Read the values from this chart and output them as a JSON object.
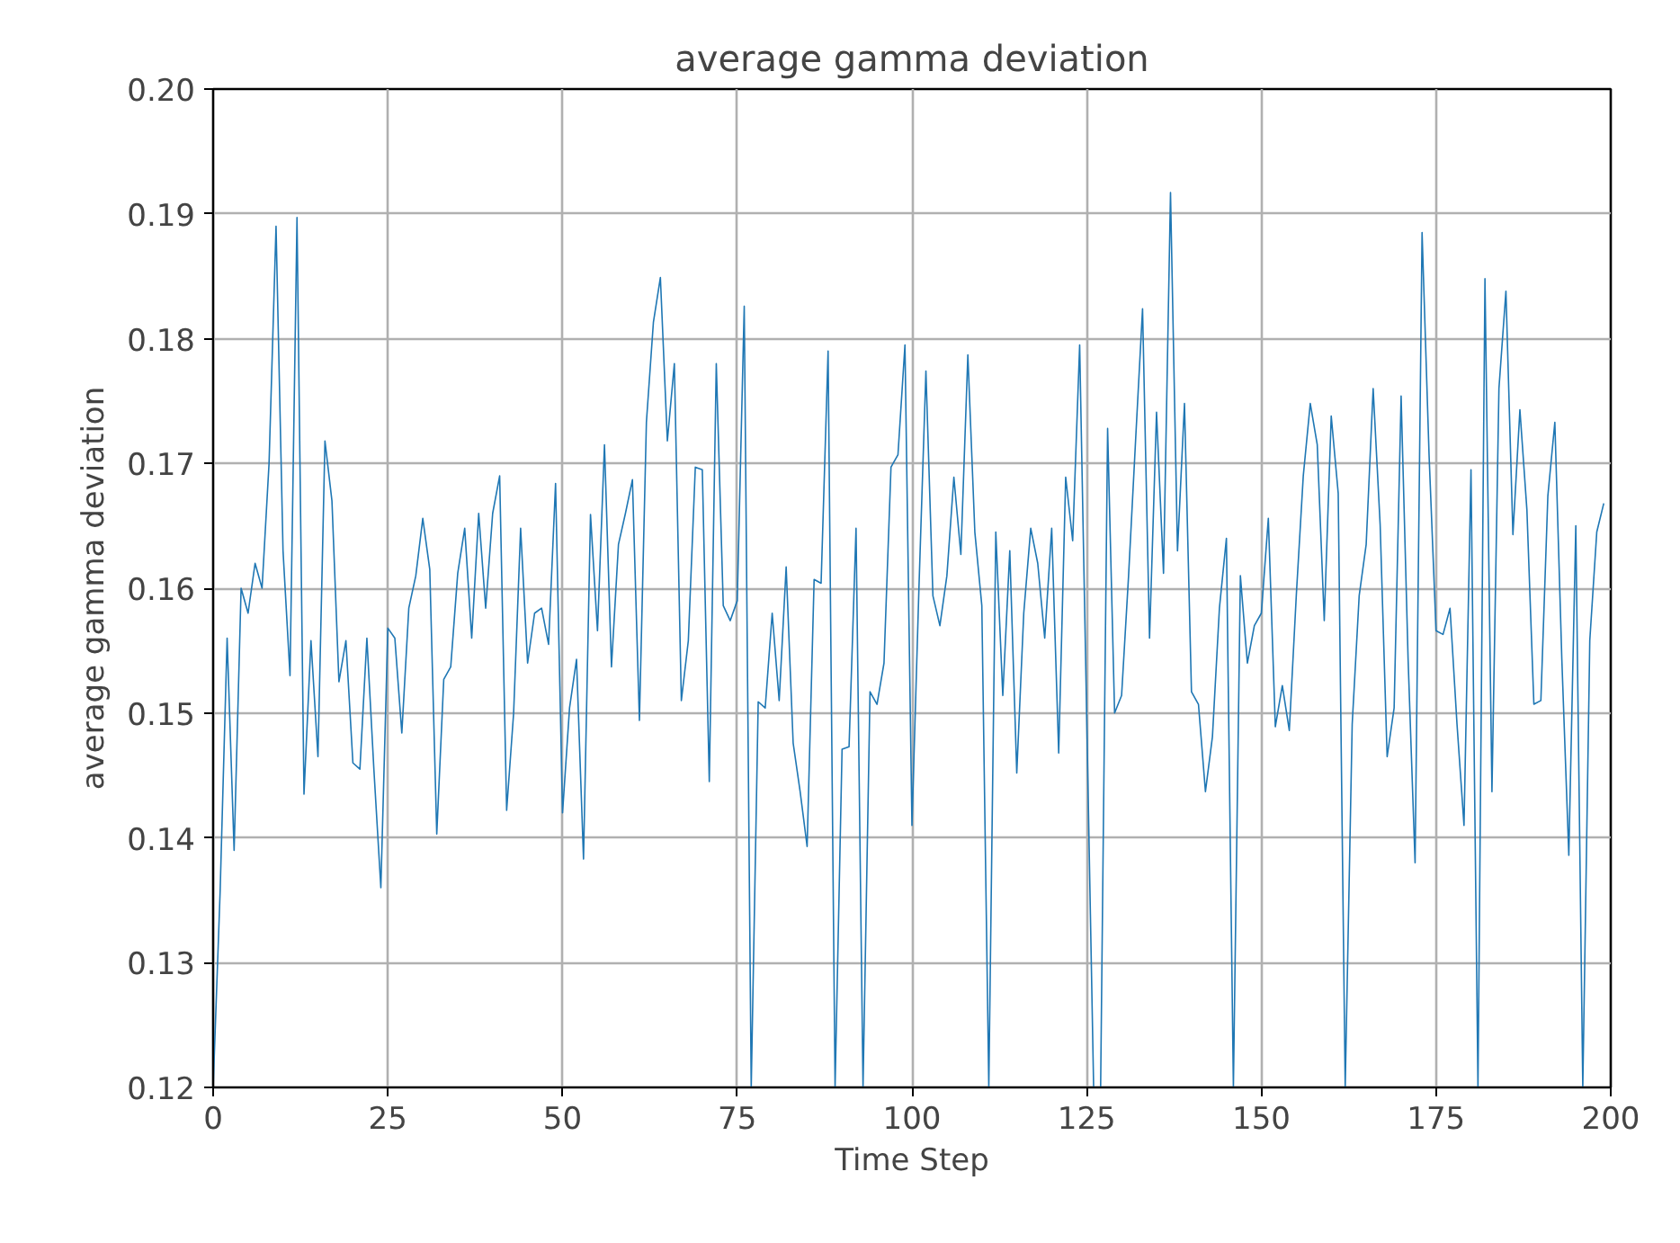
{
  "chart_data": {
    "type": "line",
    "title": "average gamma deviation",
    "xlabel": "Time Step",
    "ylabel": "average gamma deviation",
    "x": [
      0,
      1,
      2,
      3,
      4,
      5,
      6,
      7,
      8,
      9,
      10,
      11,
      12,
      13,
      14,
      15,
      16,
      17,
      18,
      19,
      20,
      21,
      22,
      23,
      24,
      25,
      26,
      27,
      28,
      29,
      30,
      31,
      32,
      33,
      34,
      35,
      36,
      37,
      38,
      39,
      40,
      41,
      42,
      43,
      44,
      45,
      46,
      47,
      48,
      49,
      50,
      51,
      52,
      53,
      54,
      55,
      56,
      57,
      58,
      59,
      60,
      61,
      62,
      63,
      64,
      65,
      66,
      67,
      68,
      69,
      70,
      71,
      72,
      73,
      74,
      75,
      76,
      77,
      78,
      79,
      80,
      81,
      82,
      83,
      84,
      85,
      86,
      87,
      88,
      89,
      90,
      91,
      92,
      93,
      94,
      95,
      96,
      97,
      98,
      99,
      100,
      101,
      102,
      103,
      104,
      105,
      106,
      107,
      108,
      109,
      110,
      111,
      112,
      113,
      114,
      115,
      116,
      117,
      118,
      119,
      120,
      121,
      122,
      123,
      124,
      125,
      126,
      127,
      128,
      129,
      130,
      131,
      132,
      133,
      134,
      135,
      136,
      137,
      138,
      139,
      140,
      141,
      142,
      143,
      144,
      145,
      146,
      147,
      148,
      149,
      150,
      151,
      152,
      153,
      154,
      155,
      156,
      157,
      158,
      159,
      160,
      161,
      162,
      163,
      164,
      165,
      166,
      167,
      168,
      169,
      170,
      171,
      172,
      173,
      174,
      175,
      176,
      177,
      178,
      179,
      180,
      181,
      182,
      183,
      184,
      185,
      186,
      187,
      188,
      189,
      190,
      191,
      192,
      193,
      194,
      195,
      196,
      197,
      198,
      199
    ],
    "series": [
      {
        "color": "#1f77b4",
        "values": [
          0.12,
          0.1357,
          0.156,
          0.139,
          0.16,
          0.158,
          0.162,
          0.16,
          0.17,
          0.189,
          0.163,
          0.153,
          0.1897,
          0.1435,
          0.1558,
          0.1465,
          0.1718,
          0.167,
          0.1525,
          0.1558,
          0.146,
          0.1455,
          0.156,
          0.1455,
          0.136,
          0.1568,
          0.156,
          0.1484,
          0.1584,
          0.161,
          0.1656,
          0.1615,
          0.1403,
          0.1527,
          0.1537,
          0.1612,
          0.1648,
          0.156,
          0.166,
          0.1584,
          0.166,
          0.169,
          0.1422,
          0.15,
          0.1648,
          0.154,
          0.158,
          0.1584,
          0.1555,
          0.1684,
          0.142,
          0.1504,
          0.1543,
          0.1383,
          0.1659,
          0.1566,
          0.1715,
          0.1537,
          0.1635,
          0.166,
          0.1687,
          0.1494,
          0.1733,
          0.1813,
          0.1849,
          0.1718,
          0.178,
          0.151,
          0.1558,
          0.1697,
          0.1695,
          0.1445,
          0.178,
          0.1586,
          0.1574,
          0.159,
          0.1826,
          0.12,
          0.1509,
          0.1504,
          0.158,
          0.151,
          0.1617,
          0.1476,
          0.1437,
          0.1393,
          0.1607,
          0.1604,
          0.179,
          0.12,
          0.1471,
          0.1473,
          0.1648,
          0.12,
          0.1517,
          0.1507,
          0.154,
          0.1697,
          0.1707,
          0.1795,
          0.141,
          0.16,
          0.1774,
          0.1594,
          0.157,
          0.161,
          0.1689,
          0.1627,
          0.1787,
          0.1645,
          0.1586,
          0.12,
          0.1645,
          0.1514,
          0.163,
          0.1452,
          0.158,
          0.1648,
          0.162,
          0.156,
          0.1648,
          0.1468,
          0.1689,
          0.1638,
          0.1795,
          0.1499,
          0.12,
          0.12,
          0.1728,
          0.15,
          0.1514,
          0.161,
          0.1718,
          0.1824,
          0.156,
          0.1741,
          0.1612,
          0.1917,
          0.163,
          0.1748,
          0.1517,
          0.1507,
          0.1437,
          0.1481,
          0.1584,
          0.164,
          0.12,
          0.161,
          0.154,
          0.157,
          0.158,
          0.1656,
          0.1489,
          0.1522,
          0.1486,
          0.1594,
          0.169,
          0.1748,
          0.1715,
          0.1574,
          0.1738,
          0.1676,
          0.12,
          0.1491,
          0.1594,
          0.1635,
          0.176,
          0.1651,
          0.1465,
          0.1504,
          0.1754,
          0.1543,
          0.138,
          0.1885,
          0.1707,
          0.1566,
          0.1563,
          0.1584,
          0.1491,
          0.141,
          0.1695,
          0.12,
          0.1848,
          0.1437,
          0.176,
          0.1838,
          0.1643,
          0.1743,
          0.1663,
          0.1507,
          0.151,
          0.1674,
          0.1733,
          0.1543,
          0.1386,
          0.165,
          0.12,
          0.1558,
          0.1645,
          0.1668
        ]
      }
    ],
    "xlim": [
      0,
      200
    ],
    "ylim": [
      0.12,
      0.2
    ],
    "xticks": [
      0,
      25,
      50,
      75,
      100,
      125,
      150,
      175,
      200
    ],
    "yticks": [
      {
        "value": 0.12,
        "label": "0.12"
      },
      {
        "value": 0.13,
        "label": "0.13"
      },
      {
        "value": 0.14,
        "label": "0.14"
      },
      {
        "value": 0.15,
        "label": "0.15"
      },
      {
        "value": 0.16,
        "label": "0.16"
      },
      {
        "value": 0.17,
        "label": "0.17"
      },
      {
        "value": 0.18,
        "label": "0.18"
      },
      {
        "value": 0.19,
        "label": "0.19"
      },
      {
        "value": 0.2,
        "label": "0.20"
      }
    ],
    "grid": true
  }
}
